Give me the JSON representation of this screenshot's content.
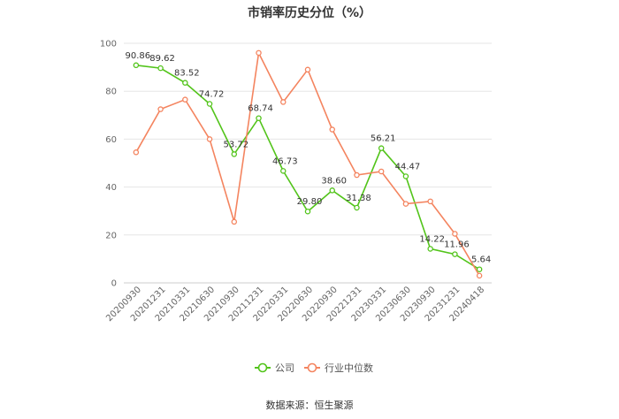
{
  "chart_data": {
    "type": "line",
    "title": "市销率历史分位（%）",
    "categories": [
      "20200930",
      "20201231",
      "20210331",
      "20210630",
      "20210930",
      "20211231",
      "20220331",
      "20220630",
      "20220930",
      "20221231",
      "20230331",
      "20230630",
      "20230930",
      "20231231",
      "20240418"
    ],
    "ylim": [
      0,
      100
    ],
    "yticks": [
      0,
      20,
      40,
      60,
      80,
      100
    ],
    "grid": true,
    "legend_position": "bottom-center",
    "series": [
      {
        "name": "公司",
        "color": "#52c41a",
        "values": [
          90.86,
          89.62,
          83.52,
          74.72,
          53.72,
          68.74,
          46.73,
          29.8,
          38.6,
          31.38,
          56.21,
          44.47,
          14.22,
          11.96,
          5.64
        ],
        "labels": [
          "90.86",
          "89.62",
          "83.52",
          "74.72",
          "53.72",
          "68.74",
          "46.73",
          "29.80",
          "38.60",
          "31.38",
          "56.21",
          "44.47",
          "14.22",
          "11.96",
          "5.64"
        ]
      },
      {
        "name": "行业中位数",
        "color": "#f4845f",
        "values": [
          54.5,
          72.5,
          76.5,
          60.0,
          25.5,
          96.0,
          75.5,
          89.0,
          64.0,
          45.0,
          46.5,
          33.0,
          34.0,
          20.5,
          3.0
        ]
      }
    ]
  },
  "source": "数据来源：恒生聚源"
}
